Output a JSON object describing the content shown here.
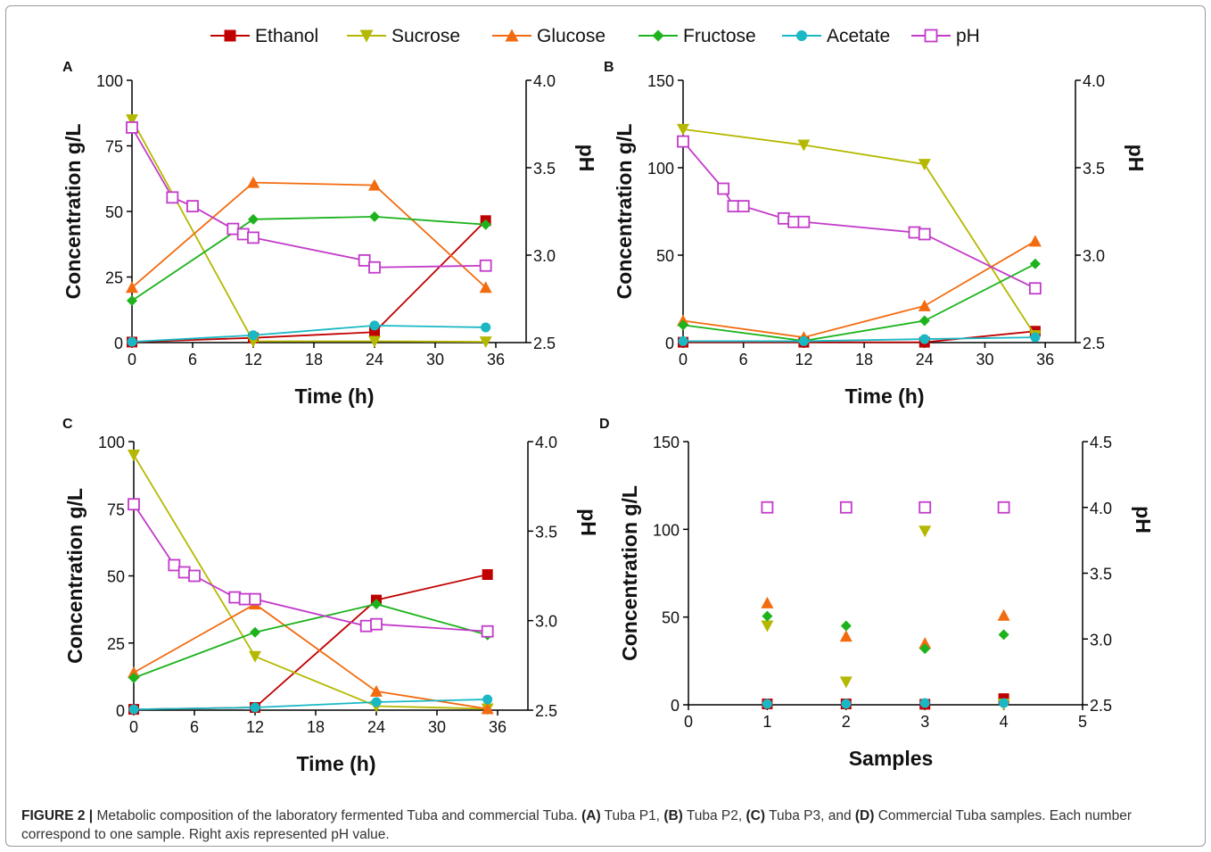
{
  "figure": {
    "caption_label": "FIGURE 2 |",
    "caption_text": "Metabolic composition of the laboratory fermented Tuba and commercial Tuba.",
    "caption_parts": [
      {
        "bold": "(A)",
        "text": " Tuba P1, "
      },
      {
        "bold": "(B)",
        "text": " Tuba P2, "
      },
      {
        "bold": "(C)",
        "text": " Tuba P3, and "
      },
      {
        "bold": "(D)",
        "text": " Commercial Tuba samples. Each number correspond to one sample. Right axis represented pH value."
      }
    ]
  },
  "legend": [
    {
      "name": "Ethanol",
      "color": "#c00000",
      "marker": "square"
    },
    {
      "name": "Sucrose",
      "color": "#b5b800",
      "marker": "triangle-down"
    },
    {
      "name": "Glucose",
      "color": "#f26b0f",
      "marker": "triangle-up"
    },
    {
      "name": "Fructose",
      "color": "#1db31d",
      "marker": "diamond"
    },
    {
      "name": "Acetate",
      "color": "#19b8c4",
      "marker": "circle"
    },
    {
      "name": "pH",
      "color": "#c23bc9",
      "marker": "open-square"
    }
  ],
  "chart_data": [
    {
      "panel": "A",
      "type": "line",
      "xlabel": "Time (h)",
      "ylabel": "Concentration g/L",
      "y2label": "pH",
      "xlim": [
        0,
        39
      ],
      "xticks": [
        0,
        6,
        12,
        18,
        24,
        30,
        36
      ],
      "ylim": [
        0,
        100
      ],
      "yticks": [
        0,
        25,
        50,
        75,
        100
      ],
      "y2lim": [
        2.5,
        4.0
      ],
      "y2ticks": [
        "2.5",
        "3.0",
        "3.5",
        "4.0"
      ],
      "series": [
        {
          "name": "Ethanol",
          "x": [
            0,
            12,
            24,
            35
          ],
          "values": [
            0.2,
            1.8,
            4.0,
            46.5
          ]
        },
        {
          "name": "Sucrose",
          "x": [
            0,
            12,
            24,
            35
          ],
          "values": [
            85,
            0.5,
            0.5,
            0.3
          ]
        },
        {
          "name": "Glucose",
          "x": [
            0,
            12,
            24,
            35
          ],
          "values": [
            21,
            61,
            60,
            21
          ]
        },
        {
          "name": "Fructose",
          "x": [
            0,
            12,
            24,
            35
          ],
          "values": [
            16,
            47,
            48,
            45
          ]
        },
        {
          "name": "Acetate",
          "x": [
            0,
            12,
            24,
            35
          ],
          "values": [
            0.3,
            2.8,
            6.5,
            5.8
          ]
        },
        {
          "name": "pH",
          "axis": "right",
          "x": [
            0,
            4,
            6,
            10,
            11,
            12,
            23,
            24,
            35
          ],
          "values": [
            3.73,
            3.33,
            3.28,
            3.15,
            3.12,
            3.1,
            2.97,
            2.93,
            2.94
          ]
        }
      ]
    },
    {
      "panel": "B",
      "type": "line",
      "xlabel": "Time (h)",
      "ylabel": "Concentration g/L",
      "y2label": "pH",
      "xlim": [
        0,
        39
      ],
      "xticks": [
        0,
        6,
        12,
        18,
        24,
        30,
        36
      ],
      "ylim": [
        0,
        150
      ],
      "yticks": [
        0,
        50,
        100,
        150
      ],
      "y2lim": [
        2.5,
        4.0
      ],
      "y2ticks": [
        "2.5",
        "3.0",
        "3.5",
        "4.0"
      ],
      "series": [
        {
          "name": "Ethanol",
          "x": [
            0,
            12,
            24,
            35
          ],
          "values": [
            0.2,
            0.2,
            0.2,
            6.5
          ]
        },
        {
          "name": "Sucrose",
          "x": [
            0,
            12,
            24,
            35
          ],
          "values": [
            122,
            113,
            102,
            4
          ]
        },
        {
          "name": "Glucose",
          "x": [
            0,
            12,
            24,
            35
          ],
          "values": [
            12.5,
            3,
            21,
            58
          ]
        },
        {
          "name": "Fructose",
          "x": [
            0,
            12,
            24,
            35
          ],
          "values": [
            10,
            1,
            12.5,
            45
          ]
        },
        {
          "name": "Acetate",
          "x": [
            0,
            12,
            24,
            35
          ],
          "values": [
            0.8,
            0.8,
            2,
            3
          ]
        },
        {
          "name": "pH",
          "axis": "right",
          "x": [
            0,
            4,
            5,
            6,
            10,
            11,
            12,
            23,
            24,
            35
          ],
          "values": [
            3.65,
            3.38,
            3.28,
            3.28,
            3.21,
            3.19,
            3.19,
            3.13,
            3.12,
            2.81
          ]
        }
      ]
    },
    {
      "panel": "C",
      "type": "line",
      "xlabel": "Time (h)",
      "ylabel": "Concentration g/L",
      "y2label": "pH",
      "xlim": [
        0,
        39
      ],
      "xticks": [
        0,
        6,
        12,
        18,
        24,
        30,
        36
      ],
      "ylim": [
        0,
        100
      ],
      "yticks": [
        0,
        25,
        50,
        75,
        100
      ],
      "y2lim": [
        2.5,
        4.0
      ],
      "y2ticks": [
        "2.5",
        "3.0",
        "3.5",
        "4.0"
      ],
      "series": [
        {
          "name": "Ethanol",
          "x": [
            0,
            12,
            24,
            35
          ],
          "values": [
            0.3,
            1,
            41,
            50.5
          ]
        },
        {
          "name": "Sucrose",
          "x": [
            0,
            12,
            24,
            35
          ],
          "values": [
            95,
            20,
            1.5,
            0.5
          ]
        },
        {
          "name": "Glucose",
          "x": [
            0,
            12,
            24,
            35
          ],
          "values": [
            14,
            39.5,
            7,
            0.5
          ]
        },
        {
          "name": "Fructose",
          "x": [
            0,
            12,
            24,
            35
          ],
          "values": [
            12,
            29,
            39.5,
            28
          ]
        },
        {
          "name": "Acetate",
          "x": [
            0,
            12,
            24,
            35
          ],
          "values": [
            0.3,
            1,
            3,
            4
          ]
        },
        {
          "name": "pH",
          "axis": "right",
          "x": [
            0,
            4,
            5,
            6,
            10,
            11,
            12,
            23,
            24,
            35
          ],
          "values": [
            3.65,
            3.31,
            3.27,
            3.25,
            3.13,
            3.12,
            3.12,
            2.97,
            2.98,
            2.94
          ]
        }
      ]
    },
    {
      "panel": "D",
      "type": "scatter",
      "xlabel": "Samples",
      "ylabel": "Concentration g/L",
      "y2label": "pH",
      "xlim": [
        0,
        5
      ],
      "xticks": [
        0,
        1,
        2,
        3,
        4,
        5
      ],
      "ylim": [
        0,
        150
      ],
      "yticks": [
        0,
        50,
        100,
        150
      ],
      "y2lim": [
        2.5,
        4.5
      ],
      "y2ticks": [
        "2.5",
        "3.0",
        "3.5",
        "4.0",
        "4.5"
      ],
      "series": [
        {
          "name": "Ethanol",
          "x": [
            1,
            2,
            3,
            4
          ],
          "values": [
            0.5,
            0.5,
            0.3,
            3.5
          ]
        },
        {
          "name": "Sucrose",
          "x": [
            1,
            2,
            3,
            4
          ],
          "values": [
            45,
            13,
            99,
            0.5
          ]
        },
        {
          "name": "Glucose",
          "x": [
            1,
            2,
            3,
            4
          ],
          "values": [
            58,
            39,
            35,
            51
          ]
        },
        {
          "name": "Fructose",
          "x": [
            1,
            2,
            3,
            4
          ],
          "values": [
            50.5,
            45,
            32,
            40
          ]
        },
        {
          "name": "Acetate",
          "x": [
            1,
            2,
            3,
            4
          ],
          "values": [
            0.5,
            0.5,
            1,
            1
          ]
        },
        {
          "name": "pH",
          "axis": "right",
          "x": [
            1,
            2,
            3,
            4
          ],
          "values": [
            4.0,
            4.0,
            4.0,
            4.0
          ]
        }
      ]
    }
  ]
}
